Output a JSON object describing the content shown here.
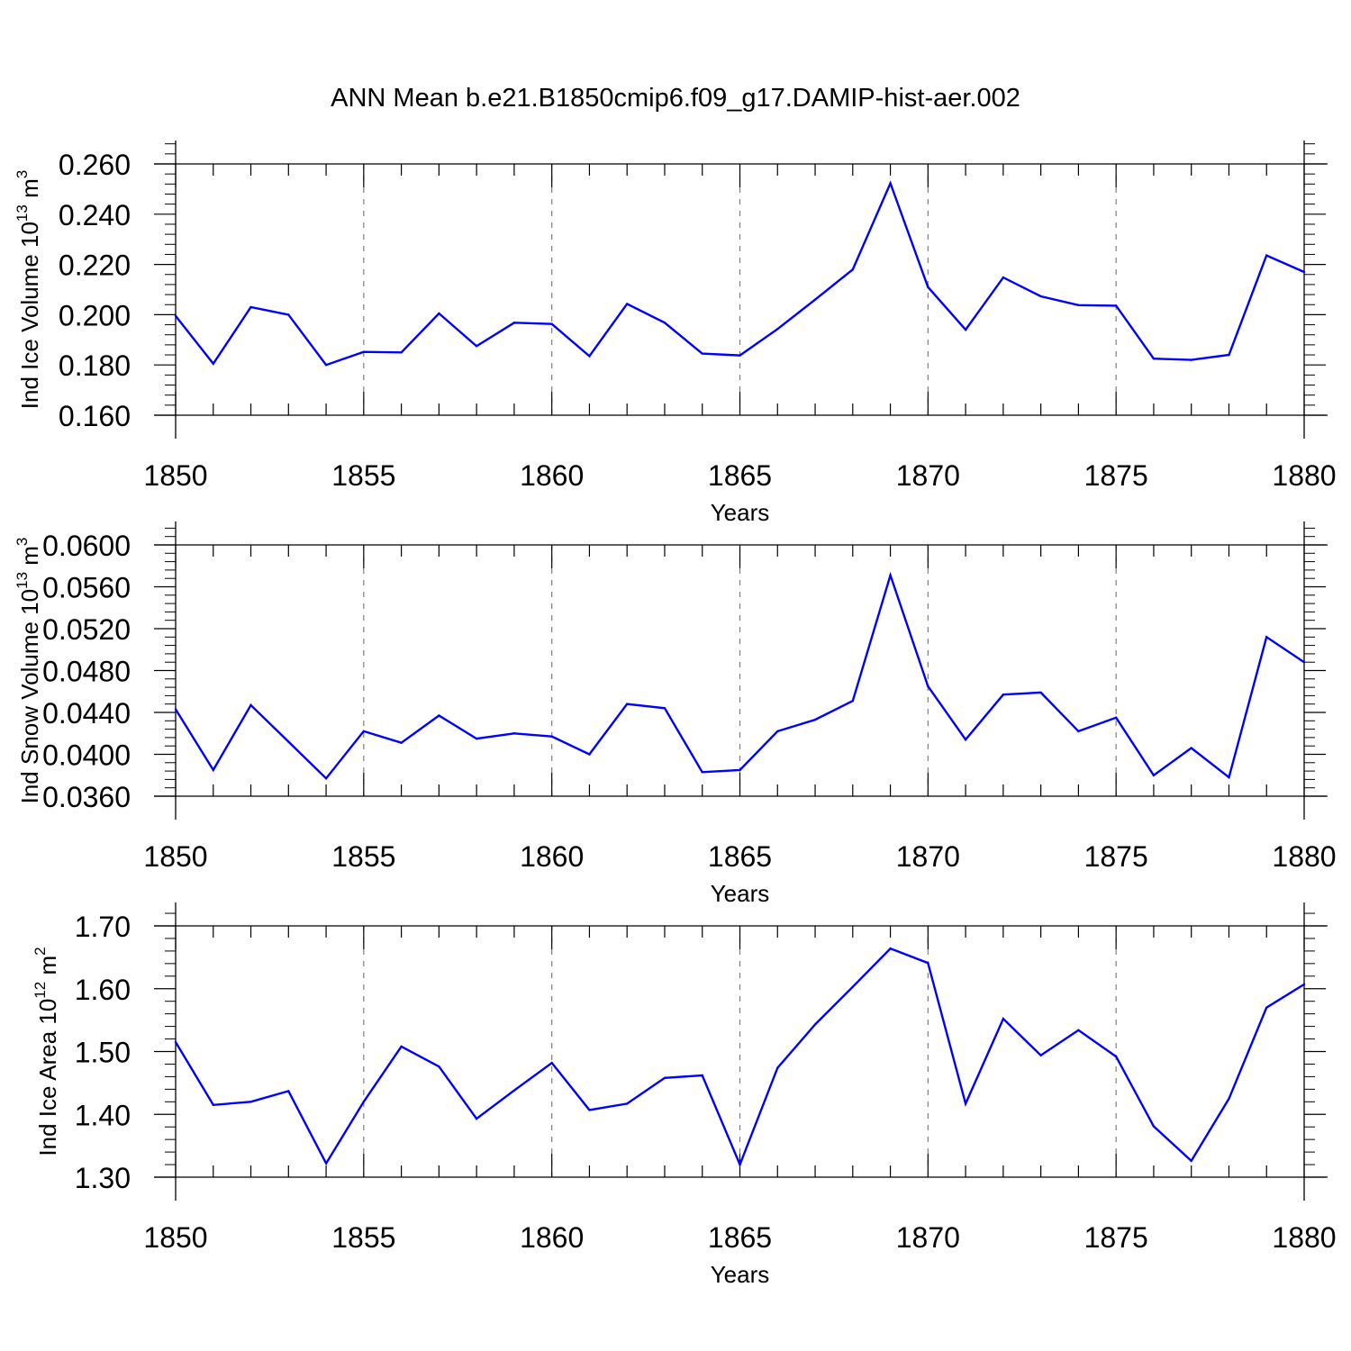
{
  "title": "ANN Mean b.e21.B1850cmip6.f09_g17.DAMIP-hist-aer.002",
  "colors": {
    "line": "#0000ff",
    "axis": "#000000",
    "grid": "#7f7f7f",
    "background": "#ffffff"
  },
  "chart_data": [
    {
      "type": "line",
      "xlabel": "Years",
      "ylabel": "Ind Ice Volume 10",
      "ylabel_exp": "13",
      "ylabel_unit": " m",
      "ylabel_unit_exp": "3",
      "xlim": [
        1850,
        1880
      ],
      "ylim": [
        0.16,
        0.26
      ],
      "xticks": [
        1850,
        1855,
        1860,
        1865,
        1870,
        1875,
        1880
      ],
      "xtick_labels": [
        "1850",
        "1855",
        "1860",
        "1865",
        "1870",
        "1875",
        "1880"
      ],
      "yticks": [
        0.16,
        0.18,
        0.2,
        0.22,
        0.24,
        0.26
      ],
      "ytick_labels": [
        "0.160",
        "0.180",
        "0.200",
        "0.220",
        "0.240",
        "0.260"
      ],
      "grid": "vertical dashed at major x ticks",
      "x": [
        1850,
        1851,
        1852,
        1853,
        1854,
        1855,
        1856,
        1857,
        1858,
        1859,
        1860,
        1861,
        1862,
        1863,
        1864,
        1865,
        1866,
        1867,
        1868,
        1869,
        1870,
        1871,
        1872,
        1873,
        1874,
        1875,
        1876,
        1877,
        1878,
        1879,
        1880
      ],
      "y": [
        0.1995,
        0.1805,
        0.203,
        0.2,
        0.18,
        0.1852,
        0.185,
        0.2005,
        0.1875,
        0.1968,
        0.1963,
        0.1835,
        0.2043,
        0.1968,
        0.1845,
        0.1838,
        0.1943,
        0.206,
        0.218,
        0.2523,
        0.211,
        0.194,
        0.2148,
        0.2073,
        0.2038,
        0.2036,
        0.1825,
        0.182,
        0.184,
        0.2236,
        0.217
      ]
    },
    {
      "type": "line",
      "xlabel": "Years",
      "ylabel": "Ind Snow Volume 10",
      "ylabel_exp": "13",
      "ylabel_unit": " m",
      "ylabel_unit_exp": "3",
      "xlim": [
        1850,
        1880
      ],
      "ylim": [
        0.036,
        0.06
      ],
      "xticks": [
        1850,
        1855,
        1860,
        1865,
        1870,
        1875,
        1880
      ],
      "xtick_labels": [
        "1850",
        "1855",
        "1860",
        "1865",
        "1870",
        "1875",
        "1880"
      ],
      "yticks": [
        0.036,
        0.04,
        0.044,
        0.048,
        0.052,
        0.056,
        0.06
      ],
      "ytick_labels": [
        "0.0360",
        "0.0400",
        "0.0440",
        "0.0480",
        "0.0520",
        "0.0560",
        "0.0600"
      ],
      "grid": "vertical dashed at major x ticks",
      "x": [
        1850,
        1851,
        1852,
        1853,
        1854,
        1855,
        1856,
        1857,
        1858,
        1859,
        1860,
        1861,
        1862,
        1863,
        1864,
        1865,
        1866,
        1867,
        1868,
        1869,
        1870,
        1871,
        1872,
        1873,
        1874,
        1875,
        1876,
        1877,
        1878,
        1879,
        1880
      ],
      "y": [
        0.0443,
        0.0385,
        0.0447,
        0.0412,
        0.0377,
        0.0422,
        0.0411,
        0.0437,
        0.0415,
        0.042,
        0.0417,
        0.04,
        0.0448,
        0.0444,
        0.0383,
        0.0385,
        0.0422,
        0.0433,
        0.0451,
        0.0571,
        0.0465,
        0.0414,
        0.0457,
        0.0459,
        0.0422,
        0.0435,
        0.038,
        0.0406,
        0.0378,
        0.0512,
        0.0488
      ]
    },
    {
      "type": "line",
      "xlabel": "Years",
      "ylabel": "Ind Ice Area 10",
      "ylabel_exp": "12",
      "ylabel_unit": " m",
      "ylabel_unit_exp": "2",
      "xlim": [
        1850,
        1880
      ],
      "ylim": [
        1.3,
        1.7
      ],
      "xticks": [
        1850,
        1855,
        1860,
        1865,
        1870,
        1875,
        1880
      ],
      "xtick_labels": [
        "1850",
        "1855",
        "1860",
        "1865",
        "1870",
        "1875",
        "1880"
      ],
      "yticks": [
        1.3,
        1.4,
        1.5,
        1.6,
        1.7
      ],
      "ytick_labels": [
        "1.30",
        "1.40",
        "1.50",
        "1.60",
        "1.70"
      ],
      "grid": "vertical dashed at major x ticks",
      "x": [
        1850,
        1851,
        1852,
        1853,
        1854,
        1855,
        1856,
        1857,
        1858,
        1859,
        1860,
        1861,
        1862,
        1863,
        1864,
        1865,
        1866,
        1867,
        1868,
        1869,
        1870,
        1871,
        1872,
        1873,
        1874,
        1875,
        1876,
        1877,
        1878,
        1879,
        1880
      ],
      "y": [
        1.515,
        1.415,
        1.42,
        1.437,
        1.322,
        1.42,
        1.508,
        1.476,
        1.393,
        1.438,
        1.482,
        1.407,
        1.417,
        1.458,
        1.462,
        1.32,
        1.474,
        1.543,
        1.603,
        1.664,
        1.641,
        1.417,
        1.552,
        1.494,
        1.534,
        1.492,
        1.381,
        1.326,
        1.425,
        1.57,
        1.607
      ]
    }
  ]
}
